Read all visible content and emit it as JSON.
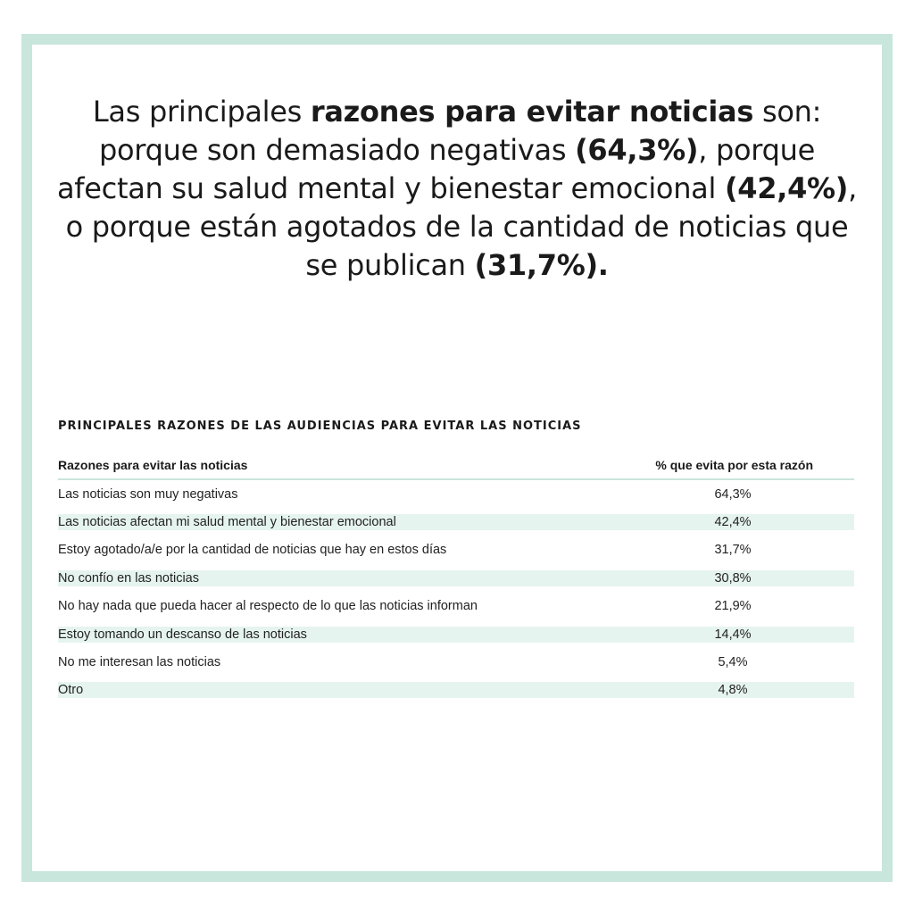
{
  "headline": {
    "part1": "Las principales ",
    "bold1": "razones para evitar noticias",
    "part2": " son: porque son demasiado negativas ",
    "bold2": "(64,3%)",
    "part3": ", porque afectan su salud mental y bienestar emocional ",
    "bold3": "(42,4%)",
    "part4": ", o porque están agotados de la cantidad de noticias que se publican ",
    "bold4": "(31,7%)."
  },
  "table": {
    "title": "PRINCIPALES RAZONES DE LAS AUDIENCIAS PARA EVITAR LAS NOTICIAS",
    "headers": [
      "Razones para evitar las noticias",
      "% que evita por esta razón"
    ],
    "rows": [
      {
        "reason": "Las noticias son muy negativas",
        "percent": "64,3%"
      },
      {
        "reason": "Las noticias afectan mi salud mental y bienestar emocional",
        "percent": "42,4%"
      },
      {
        "reason": "Estoy agotado/a/e por la cantidad de noticias que hay en estos días",
        "percent": "31,7%"
      },
      {
        "reason": "No confío en las noticias",
        "percent": "30,8%"
      },
      {
        "reason": "No hay nada que pueda hacer al respecto de lo que las noticias informan",
        "percent": "21,9%"
      },
      {
        "reason": "Estoy tomando un descanso de las noticias",
        "percent": "14,4%"
      },
      {
        "reason": "No me interesan las noticias",
        "percent": "5,4%"
      },
      {
        "reason": "Otro",
        "percent": "4,8%"
      }
    ]
  },
  "colors": {
    "frame_border": "#c8e6dc",
    "row_stripe": "#e6f4ef",
    "header_rule": "#cbe4dc",
    "text": "#1a1a1a"
  }
}
